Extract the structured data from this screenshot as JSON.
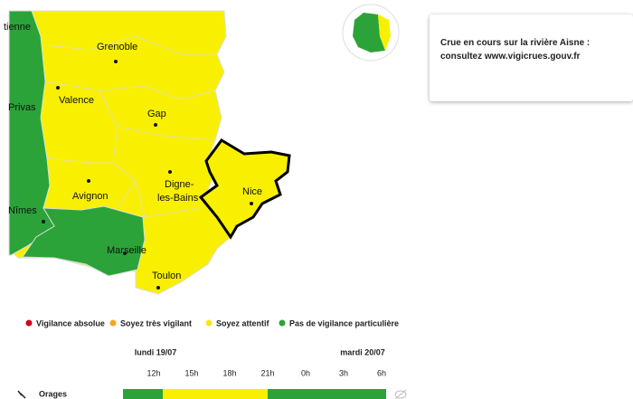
{
  "map": {
    "cities": [
      "tienne",
      "Grenoble",
      "Privas",
      "Valence",
      "Gap",
      "Digne-",
      "les-Bains",
      "Avignon",
      "Nice",
      "Nîmes",
      "Marseille",
      "Toulon"
    ]
  },
  "notice": {
    "line1": "Crue en cours sur la rivière Aisne :",
    "line2": "consultez www.vigicrues.gouv.fr"
  },
  "legend": [
    {
      "label": "Vigilance absolue",
      "color": "#d0021b"
    },
    {
      "label": "Soyez très vigilant",
      "color": "#f5a623"
    },
    {
      "label": "Soyez attentif",
      "color": "#f8e71c"
    },
    {
      "label": "Pas de vigilance particulière",
      "color": "#2ba339"
    }
  ],
  "timeline": {
    "days": [
      "lundi 19/07",
      "mardi 20/07"
    ],
    "hours": [
      "12h",
      "15h",
      "18h",
      "21h",
      "0h",
      "3h",
      "6h"
    ],
    "rows": [
      {
        "name": "Orages"
      }
    ]
  }
}
